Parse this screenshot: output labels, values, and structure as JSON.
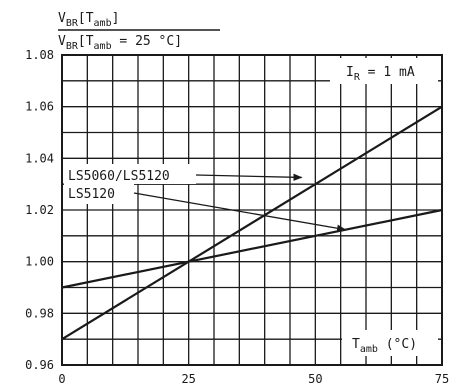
{
  "chart_data": {
    "type": "line",
    "ylabel": {
      "numerator_main": "V",
      "numerator_sub": "BR",
      "numerator_rest": "[T",
      "numerator_rest_sub": "amb",
      "numerator_close": "]",
      "denominator_main": "V",
      "denominator_sub": "BR",
      "denominator_rest": "[T",
      "denominator_rest_sub": "amb",
      "denominator_close": " = 25 °C]"
    },
    "xlabel": {
      "main": "T",
      "sub": "amb",
      "unit": " (°C)"
    },
    "condition": {
      "main": "I",
      "sub": "R",
      "rest": " = 1 mA"
    },
    "xlim": [
      0,
      75
    ],
    "ylim": [
      0.96,
      1.08
    ],
    "x_tick_labels": [
      "0",
      "25",
      "50",
      "75"
    ],
    "x_tick_values": [
      0,
      25,
      50,
      75
    ],
    "y_tick_labels": [
      "0.96",
      "0.98",
      "1.00",
      "1.02",
      "1.04",
      "1.06",
      "1.08"
    ],
    "y_tick_values": [
      0.96,
      0.98,
      1.0,
      1.02,
      1.04,
      1.06,
      1.08
    ],
    "grid": true,
    "series": [
      {
        "name": "LS5060/LS5120",
        "x": [
          0,
          75
        ],
        "y": [
          0.97,
          1.06
        ],
        "label_anchor": [
          47.3,
          1.0326
        ]
      },
      {
        "name": "LS5120",
        "x": [
          0,
          75
        ],
        "y": [
          0.99,
          1.02
        ],
        "label_anchor": [
          55.9,
          1.0124
        ]
      }
    ],
    "colors": {
      "line": "#1a1a1a",
      "grid": "#1a1a1a",
      "background": "#ffffff"
    }
  }
}
